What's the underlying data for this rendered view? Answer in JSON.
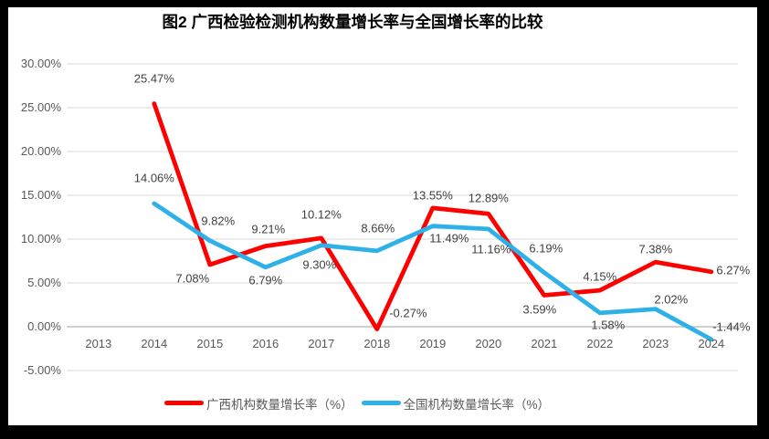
{
  "frame": {
    "background": "#000000",
    "paper_background": "#ffffff"
  },
  "title": "图2 广西检验检测机构数量增长率与全国增长率的比较",
  "chart_data": {
    "type": "line",
    "title": "图2 广西检验检测机构数量增长率与全国增长率的比较",
    "categories": [
      "2013",
      "2014",
      "2015",
      "2016",
      "2017",
      "2018",
      "2019",
      "2020",
      "2021",
      "2022",
      "2023",
      "2024"
    ],
    "series": [
      {
        "name": "广西机构数量增长率（%）",
        "color": "#fe0000",
        "values": [
          null,
          25.47,
          7.08,
          9.21,
          10.12,
          -0.27,
          13.55,
          12.89,
          3.59,
          4.15,
          7.38,
          6.27
        ],
        "label_offsets": [
          [
            0,
            0
          ],
          [
            0,
            -27
          ],
          [
            -19,
            15
          ],
          [
            3,
            -19
          ],
          [
            0,
            -26
          ],
          [
            34,
            -18
          ],
          [
            0,
            -14
          ],
          [
            0,
            -17
          ],
          [
            -5,
            15
          ],
          [
            0,
            -15
          ],
          [
            0,
            -14
          ],
          [
            24,
            -2
          ]
        ]
      },
      {
        "name": "全国机构数量增长率（%）",
        "color": "#2db1e8",
        "values": [
          null,
          14.06,
          9.82,
          6.79,
          9.3,
          8.66,
          11.49,
          11.16,
          6.19,
          1.58,
          2.02,
          -1.44
        ],
        "label_offsets": [
          [
            0,
            0
          ],
          [
            0,
            -28
          ],
          [
            9,
            -22
          ],
          [
            0,
            14
          ],
          [
            -2,
            21
          ],
          [
            1,
            -25
          ],
          [
            18,
            13
          ],
          [
            3,
            22
          ],
          [
            2,
            -27
          ],
          [
            9,
            13
          ],
          [
            17,
            -11
          ],
          [
            22,
            -14
          ]
        ]
      }
    ],
    "ylim": [
      -5,
      30
    ],
    "ytick_step": 5,
    "ytick_labels": [
      "30.00%",
      "25.00%",
      "20.00%",
      "15.00%",
      "10.00%",
      "5.00%",
      "0.00%",
      "-5.00%"
    ],
    "value_format": "0.00%",
    "grid": true,
    "legend_position": "bottom",
    "colors": {
      "grid": "#d9d9d9",
      "axis": "#c0c0c0",
      "tick_text": "#595959",
      "label_text": "#404040"
    }
  }
}
